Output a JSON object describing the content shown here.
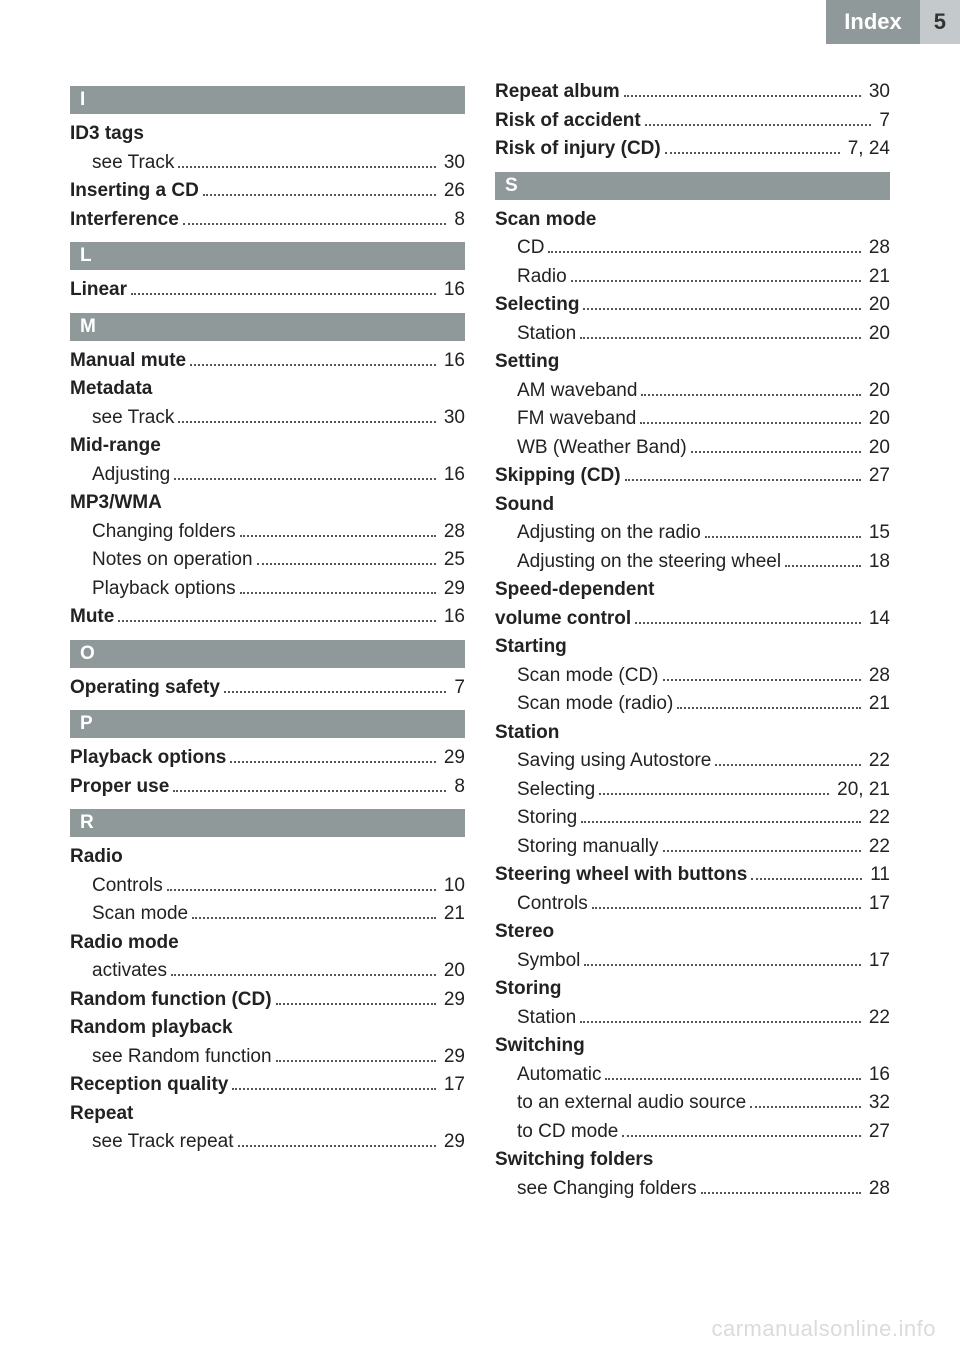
{
  "header": {
    "title": "Index",
    "page": "5"
  },
  "watermark": "carmanualsonline.info",
  "colors": {
    "section_bg": "#8f999a",
    "section_fg": "#ffffff",
    "pagebox_bg": "#c4cacb",
    "text": "#222222",
    "watermark": "#d9dcdc"
  },
  "sections": [
    {
      "letter": "I",
      "entries": [
        {
          "label": "ID3 tags",
          "bold": true,
          "header": true
        },
        {
          "label": "see Track",
          "page": "30",
          "indent": true
        },
        {
          "label": "Inserting a CD",
          "page": "26",
          "bold": true
        },
        {
          "label": "Interference",
          "page": "8",
          "bold": true
        }
      ]
    },
    {
      "letter": "L",
      "entries": [
        {
          "label": "Linear",
          "page": "16",
          "bold": true
        }
      ]
    },
    {
      "letter": "M",
      "entries": [
        {
          "label": "Manual mute",
          "page": "16",
          "bold": true
        },
        {
          "label": "Metadata",
          "bold": true,
          "header": true
        },
        {
          "label": "see Track",
          "page": "30",
          "indent": true
        },
        {
          "label": "Mid-range",
          "bold": true,
          "header": true
        },
        {
          "label": "Adjusting",
          "page": "16",
          "indent": true
        },
        {
          "label": "MP3/WMA",
          "bold": true,
          "header": true
        },
        {
          "label": "Changing folders",
          "page": "28",
          "indent": true
        },
        {
          "label": "Notes on operation",
          "page": "25",
          "indent": true
        },
        {
          "label": "Playback options",
          "page": "29",
          "indent": true
        },
        {
          "label": "Mute",
          "page": "16",
          "bold": true
        }
      ]
    },
    {
      "letter": "O",
      "entries": [
        {
          "label": "Operating safety",
          "page": "7",
          "bold": true
        }
      ]
    },
    {
      "letter": "P",
      "entries": [
        {
          "label": "Playback options",
          "page": "29",
          "bold": true
        },
        {
          "label": "Proper use",
          "page": "8",
          "bold": true
        }
      ]
    },
    {
      "letter": "R",
      "entries": [
        {
          "label": "Radio",
          "bold": true,
          "header": true
        },
        {
          "label": "Controls",
          "page": "10",
          "indent": true
        },
        {
          "label": "Scan mode",
          "page": "21",
          "indent": true
        },
        {
          "label": "Radio mode",
          "bold": true,
          "header": true
        },
        {
          "label": "activates",
          "page": "20",
          "indent": true
        },
        {
          "label": "Random function (CD)",
          "page": "29",
          "bold": true
        },
        {
          "label": "Random playback",
          "bold": true,
          "header": true
        },
        {
          "label": "see Random function",
          "page": "29",
          "indent": true
        },
        {
          "label": "Reception quality",
          "page": "17",
          "bold": true
        },
        {
          "label": "Repeat",
          "bold": true,
          "header": true
        },
        {
          "label": "see Track repeat",
          "page": "29",
          "indent": true
        }
      ]
    },
    {
      "colbreak": true,
      "entries": [
        {
          "label": "Repeat album",
          "page": "30",
          "bold": true
        },
        {
          "label": "Risk of accident",
          "page": "7",
          "bold": true
        },
        {
          "label": "Risk of injury (CD)",
          "page": "7, 24",
          "bold": true
        }
      ]
    },
    {
      "letter": "S",
      "entries": [
        {
          "label": "Scan mode",
          "bold": true,
          "header": true
        },
        {
          "label": "CD",
          "page": "28",
          "indent": true
        },
        {
          "label": "Radio",
          "page": "21",
          "indent": true
        },
        {
          "label": "Selecting",
          "page": "20",
          "bold": true
        },
        {
          "label": "Station",
          "page": "20",
          "indent": true
        },
        {
          "label": "Setting",
          "bold": true,
          "header": true
        },
        {
          "label": "AM waveband",
          "page": "20",
          "indent": true
        },
        {
          "label": "FM waveband",
          "page": "20",
          "indent": true
        },
        {
          "label": "WB (Weather Band)",
          "page": "20",
          "indent": true
        },
        {
          "label": "Skipping (CD)",
          "page": "27",
          "bold": true
        },
        {
          "label": "Sound",
          "bold": true,
          "header": true
        },
        {
          "label": "Adjusting on the radio",
          "page": "15",
          "indent": true
        },
        {
          "label": "Adjusting on the steering wheel",
          "page": "18",
          "indent": true
        },
        {
          "label": "Speed-dependent",
          "bold": true,
          "header": true
        },
        {
          "label": "volume control",
          "page": "14",
          "bold": true
        },
        {
          "label": "Starting",
          "bold": true,
          "header": true
        },
        {
          "label": "Scan mode (CD)",
          "page": "28",
          "indent": true
        },
        {
          "label": "Scan mode (radio)",
          "page": "21",
          "indent": true
        },
        {
          "label": "Station",
          "bold": true,
          "header": true
        },
        {
          "label": "Saving using Autostore",
          "page": "22",
          "indent": true
        },
        {
          "label": "Selecting",
          "page": "20, 21",
          "indent": true
        },
        {
          "label": "Storing",
          "page": "22",
          "indent": true
        },
        {
          "label": "Storing manually",
          "page": "22",
          "indent": true
        },
        {
          "label": "Steering wheel with buttons",
          "page": "11",
          "bold": true
        },
        {
          "label": "Controls",
          "page": "17",
          "indent": true
        },
        {
          "label": "Stereo",
          "bold": true,
          "header": true
        },
        {
          "label": "Symbol",
          "page": "17",
          "indent": true
        },
        {
          "label": "Storing",
          "bold": true,
          "header": true
        },
        {
          "label": "Station",
          "page": "22",
          "indent": true
        },
        {
          "label": "Switching",
          "bold": true,
          "header": true
        },
        {
          "label": "Automatic",
          "page": "16",
          "indent": true
        },
        {
          "label": "to an external audio source",
          "page": "32",
          "indent": true
        },
        {
          "label": "to CD mode",
          "page": "27",
          "indent": true
        },
        {
          "label": "Switching folders",
          "bold": true,
          "header": true
        },
        {
          "label": "see Changing folders",
          "page": "28",
          "indent": true
        }
      ]
    }
  ]
}
